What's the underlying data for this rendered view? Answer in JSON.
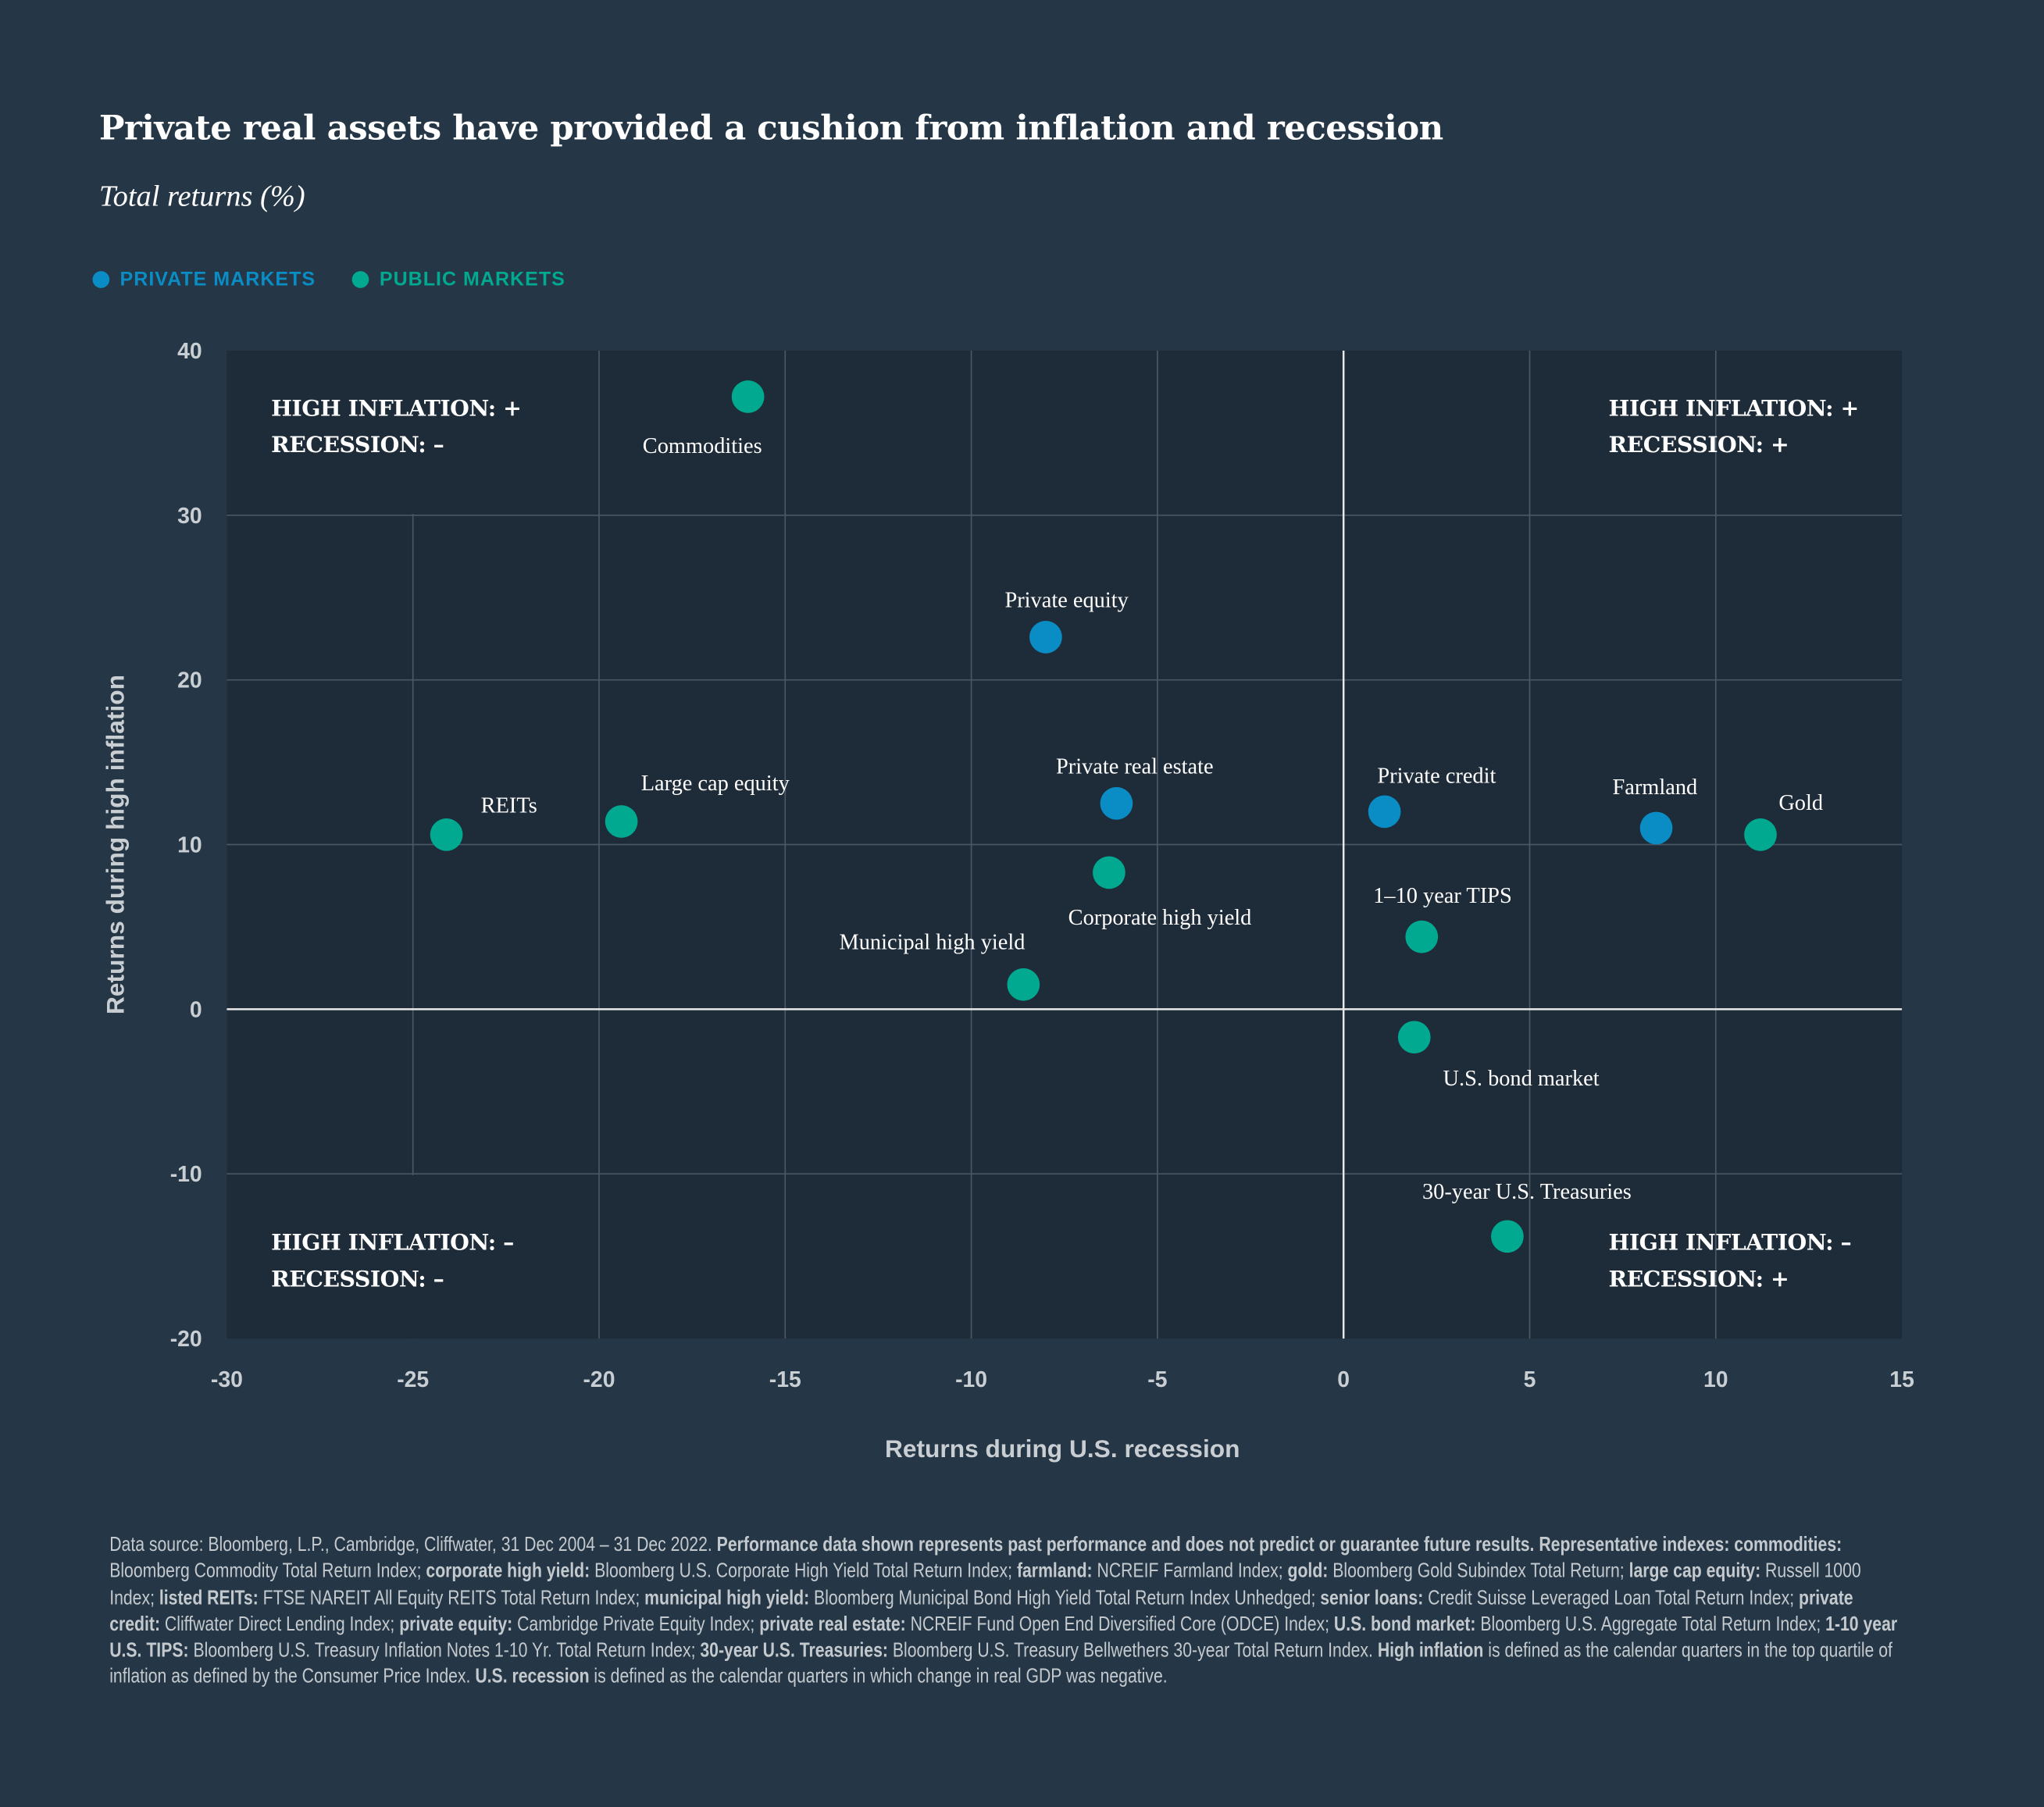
{
  "title": "Private real assets have provided a cushion from inflation and recession",
  "subtitle": "Total returns (%)",
  "colors": {
    "background": "#253746",
    "plot_background": "#1e2b38",
    "private": "#0a8cc4",
    "public": "#00a98f",
    "grid": "#4a5866",
    "zero_lines": "#e8e8e8"
  },
  "legend": [
    {
      "label": "PRIVATE MARKETS",
      "color": "#0a8cc4"
    },
    {
      "label": "PUBLIC MARKETS",
      "color": "#00a98f"
    }
  ],
  "quadrants": {
    "top_left": [
      "HIGH INFLATION: +",
      "RECESSION: –"
    ],
    "top_right": [
      "HIGH INFLATION: +",
      "RECESSION: +"
    ],
    "bottom_left": [
      "HIGH INFLATION: –",
      "RECESSION: –"
    ],
    "bottom_right": [
      "HIGH INFLATION: –",
      "RECESSION: +"
    ]
  },
  "chart_data": {
    "type": "scatter",
    "xlabel": "Returns during U.S. recession",
    "ylabel": "Returns during high inflation",
    "xlim": [
      -30,
      15
    ],
    "ylim": [
      -20,
      40
    ],
    "xticks": [
      -30,
      -25,
      -20,
      -15,
      -10,
      -5,
      0,
      5,
      10,
      15
    ],
    "yticks": [
      -20,
      -10,
      0,
      10,
      20,
      30,
      40
    ],
    "grid": true,
    "legend_position": "top-left",
    "series": [
      {
        "name": "PRIVATE MARKETS",
        "color": "#0a8cc4",
        "points": [
          {
            "label": "Private equity",
            "x": -8.0,
            "y": 22.6
          },
          {
            "label": "Private real estate",
            "x": -6.1,
            "y": 12.5
          },
          {
            "label": "Private credit",
            "x": 1.1,
            "y": 12.0
          },
          {
            "label": "Farmland",
            "x": 8.4,
            "y": 11.0
          }
        ]
      },
      {
        "name": "PUBLIC MARKETS",
        "color": "#00a98f",
        "points": [
          {
            "label": "Commodities",
            "x": -16.0,
            "y": 37.2
          },
          {
            "label": "REITs",
            "x": -24.1,
            "y": 10.6
          },
          {
            "label": "Large cap equity",
            "x": -19.4,
            "y": 11.4
          },
          {
            "label": "Corporate high yield",
            "x": -6.3,
            "y": 8.3
          },
          {
            "label": "Municipal high yield",
            "x": -8.6,
            "y": 1.5
          },
          {
            "label": "Gold",
            "x": 11.2,
            "y": 10.6
          },
          {
            "label": "1–10 year TIPS",
            "x": 2.1,
            "y": 4.4
          },
          {
            "label": "U.S. bond market",
            "x": 1.9,
            "y": -1.7
          },
          {
            "label": "30-year U.S. Treasuries",
            "x": 4.4,
            "y": -13.8
          }
        ]
      }
    ]
  },
  "footnote": [
    {
      "text": "Data source: Bloomberg, L.P., Cambridge, Cliffwater, 31 Dec 2004 – 31 Dec 2022. ",
      "bold": false
    },
    {
      "text": "Performance data shown represents past performance and does not predict or guarantee future results. Representative indexes: commodities:",
      "bold": true
    },
    {
      "text": " Bloomberg Commodity Total Return Index; ",
      "bold": false
    },
    {
      "text": "corporate high yield:",
      "bold": true
    },
    {
      "text": " Bloomberg U.S. Corporate High Yield Total Return Index; ",
      "bold": false
    },
    {
      "text": "farmland:",
      "bold": true
    },
    {
      "text": " NCREIF Farmland Index; ",
      "bold": false
    },
    {
      "text": "gold:",
      "bold": true
    },
    {
      "text": " Bloomberg Gold Subindex Total Return; ",
      "bold": false
    },
    {
      "text": "large cap equity:",
      "bold": true
    },
    {
      "text": " Russell 1000 Index; ",
      "bold": false
    },
    {
      "text": "listed REITs:",
      "bold": true
    },
    {
      "text": " FTSE NAREIT All Equity REITS Total Return Index; ",
      "bold": false
    },
    {
      "text": "municipal high yield:",
      "bold": true
    },
    {
      "text": " Bloomberg Municipal Bond High Yield Total Return Index Unhedged; ",
      "bold": false
    },
    {
      "text": "senior loans:",
      "bold": true
    },
    {
      "text": " Credit Suisse Leveraged Loan Total Return Index; ",
      "bold": false
    },
    {
      "text": "private credit:",
      "bold": true
    },
    {
      "text": " Cliffwater Direct Lending Index; ",
      "bold": false
    },
    {
      "text": "private equity:",
      "bold": true
    },
    {
      "text": " Cambridge Private Equity Index; ",
      "bold": false
    },
    {
      "text": "private real estate:",
      "bold": true
    },
    {
      "text": " NCREIF Fund Open End Diversified Core (ODCE) Index; ",
      "bold": false
    },
    {
      "text": "U.S. bond market:",
      "bold": true
    },
    {
      "text": " Bloomberg U.S. Aggregate Total Return Index; ",
      "bold": false
    },
    {
      "text": "1-10 year U.S. TIPS:",
      "bold": true
    },
    {
      "text": " Bloomberg U.S. Treasury Inflation Notes 1-10 Yr. Total Return Index; ",
      "bold": false
    },
    {
      "text": "30-year U.S. Treasuries:",
      "bold": true
    },
    {
      "text": " Bloomberg U.S. Treasury Bellwethers 30-year Total Return Index. ",
      "bold": false
    },
    {
      "text": "High inflation",
      "bold": true
    },
    {
      "text": " is defined as the calendar quarters in the top quartile of inflation as defined by the Consumer Price Index. ",
      "bold": false
    },
    {
      "text": "U.S. recession",
      "bold": true
    },
    {
      "text": " is defined as the calendar quarters in which change in real GDP was negative.",
      "bold": false
    }
  ]
}
